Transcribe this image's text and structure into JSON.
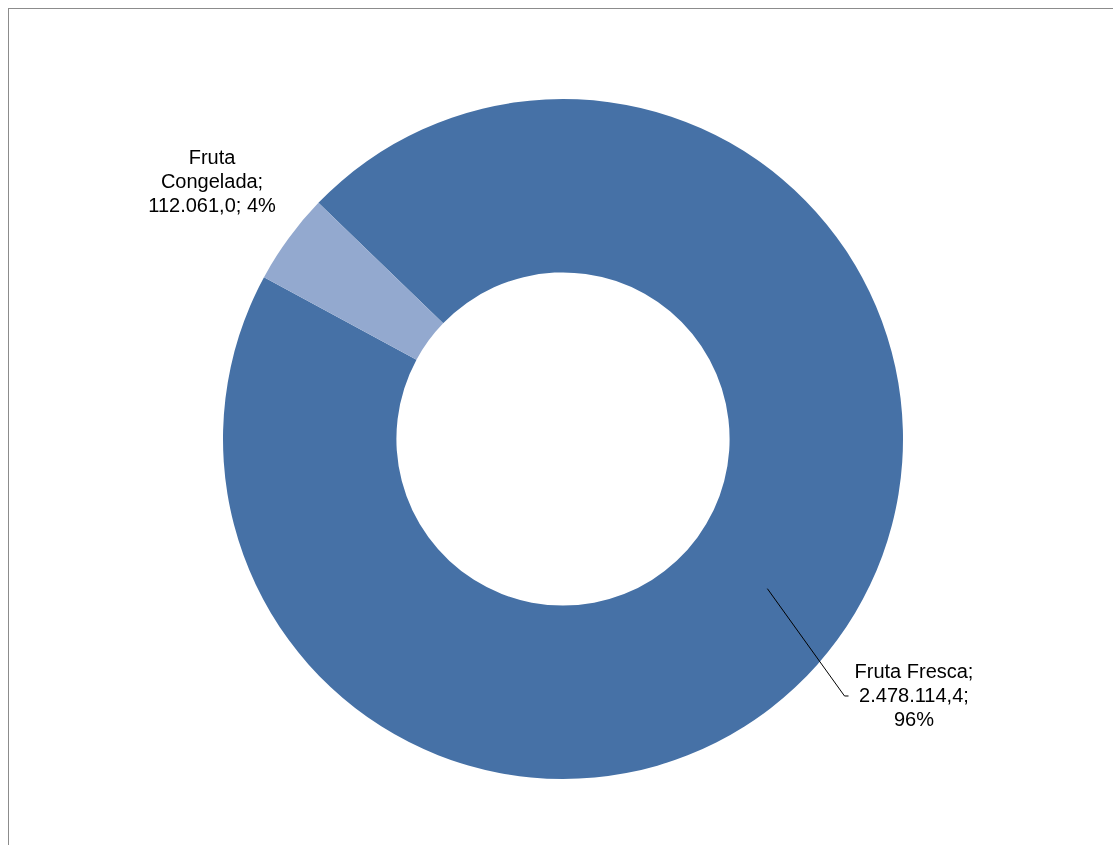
{
  "chart_data": {
    "type": "donut",
    "categories": [
      "Fruta Fresca",
      "Fruta Congelada"
    ],
    "values": [
      2478114.4,
      112061.0
    ],
    "value_labels": [
      "; 2.478.114,4; 96%",
      "; 112.061,0; 4%"
    ],
    "colors": [
      "#4671a6",
      "#93a9cf"
    ],
    "legend": false
  }
}
